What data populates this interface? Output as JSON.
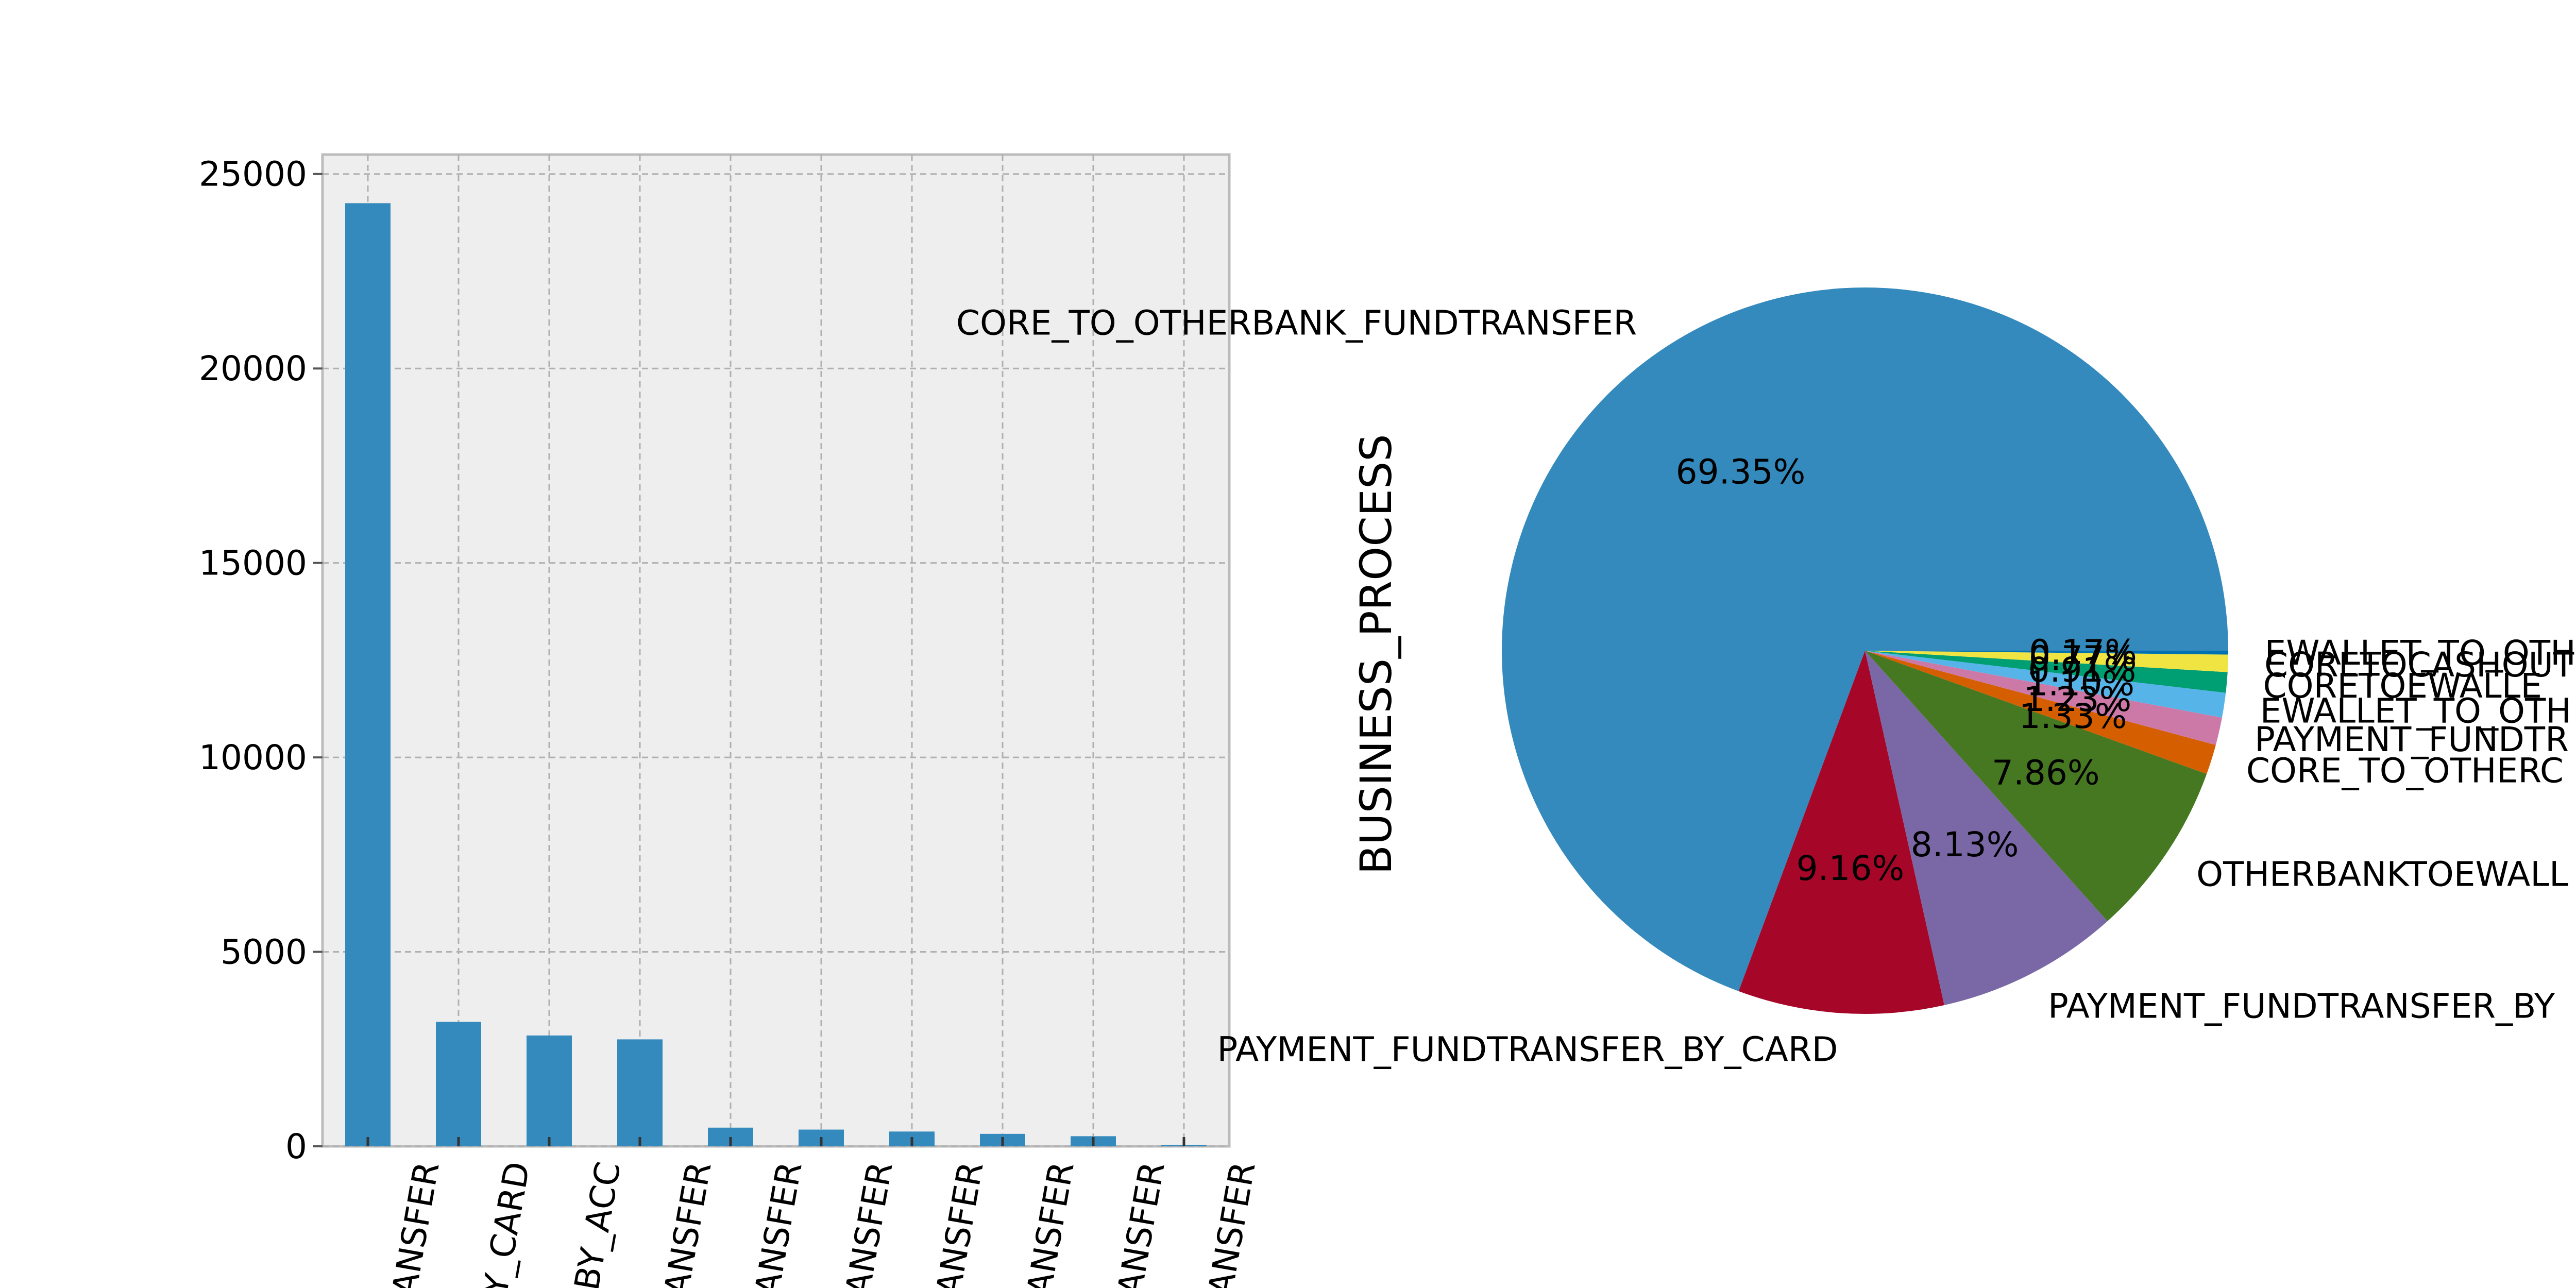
{
  "chart_data": [
    {
      "type": "bar",
      "categories": [
        "ANSFER",
        "Y_CARD",
        "BY_ACC",
        "ANSFER",
        "ANSFER",
        "ANSFER",
        "ANSFER",
        "ANSFER",
        "ANSFER",
        "ANSFER"
      ],
      "values": [
        24250,
        3200,
        2850,
        2750,
        480,
        430,
        380,
        320,
        260,
        40
      ],
      "ylim": [
        0,
        25500
      ],
      "yticks": [
        0,
        5000,
        10000,
        15000,
        20000,
        25000
      ],
      "grid": true,
      "colors": {
        "bar": "#348abd",
        "background": "#eeeeee",
        "grid": "#b0b0b0",
        "frame": "#bcbcbc"
      }
    },
    {
      "type": "pie",
      "ylabel": "BUSINESS_PROCESS",
      "slices": [
        {
          "label": "CORE_TO_OTHERBANK_FUNDTRANSFER",
          "percent": "69.35%",
          "value": 69.35,
          "color": "#348abd"
        },
        {
          "label": "PAYMENT_FUNDTRANSFER_BY_CARD",
          "percent": "9.16%",
          "value": 9.16,
          "color": "#a60628"
        },
        {
          "label": "PAYMENT_FUNDTRANSFER_BY",
          "percent": "8.13%",
          "value": 8.13,
          "color": "#7a68a6"
        },
        {
          "label": "OTHERBANKTOEWALL",
          "percent": "7.86%",
          "value": 7.86,
          "color": "#467821"
        },
        {
          "label": "CORE_TO_OTHERC",
          "percent": "1.33%",
          "value": 1.33,
          "color": "#d55e00"
        },
        {
          "label": "PAYMENT_FUNDTR",
          "percent": "1.23%",
          "value": 1.23,
          "color": "#cc79a7"
        },
        {
          "label": "EWALLET_TO_OTH",
          "percent": "1.10%",
          "value": 1.1,
          "color": "#56b4e9"
        },
        {
          "label": "CORETOEWALLE",
          "percent": "0.91%",
          "value": 0.91,
          "color": "#009e73"
        },
        {
          "label": "CORETOCASHOUT",
          "percent": "0.77%",
          "value": 0.77,
          "color": "#f0e442"
        },
        {
          "label": "EWALLET_TO_OTH",
          "percent": "0.17%",
          "value": 0.17,
          "color": "#0072b2"
        }
      ]
    }
  ]
}
